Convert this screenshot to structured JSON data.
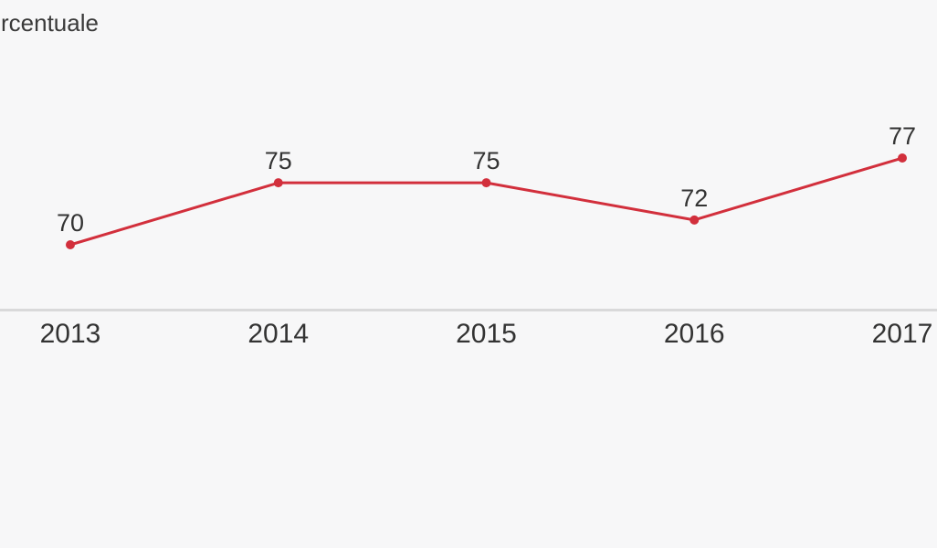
{
  "page": {
    "background": "#f7f7f8"
  },
  "colors": {
    "line": "#d22f3c",
    "marker": "#d22f3c",
    "axis_line": "#d9d9da",
    "text": "#333333",
    "title_text": "#3a3a3a"
  },
  "chart_data": {
    "type": "line",
    "title": "rcentuale",
    "categories": [
      "2013",
      "2014",
      "2015",
      "2016",
      "2017"
    ],
    "series": [
      {
        "values": [
          70,
          75,
          75,
          72,
          77
        ],
        "color": "#d22f3c"
      }
    ],
    "data_labels": [
      "70",
      "75",
      "75",
      "72",
      "77"
    ],
    "xlabel": "",
    "ylabel": "",
    "ylim": [
      65,
      90
    ],
    "grid": false,
    "legend": "none",
    "markers": true,
    "x_axis_line": true
  }
}
